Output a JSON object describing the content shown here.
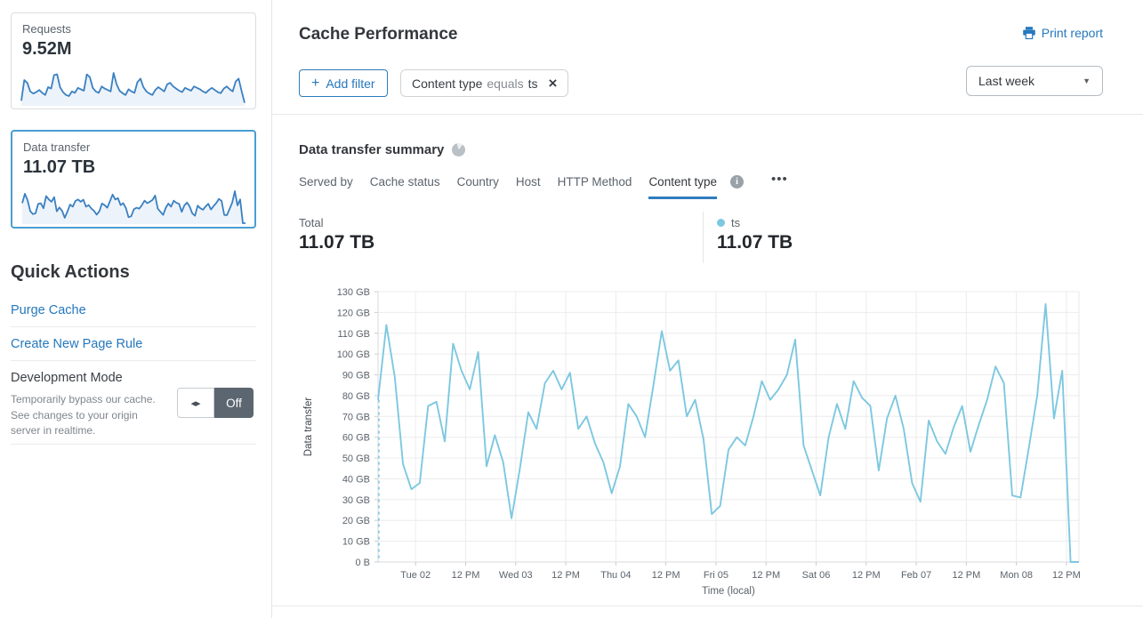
{
  "colors": {
    "link_blue": "#2578bd",
    "chart_line": "#7dc8e0",
    "spark_stroke": "#3a80c1",
    "spark_fill": "#edf3fa",
    "selected_card_border": "#4a9ed2",
    "tab_underline": "#2f7cbf"
  },
  "icons": {
    "plus": "+",
    "close": "×",
    "caret_down": "▼",
    "info": "i",
    "more": "•••",
    "dev_mode_arrows": "◂▸"
  },
  "sidebar": {
    "requests_card": {
      "label": "Requests",
      "value": "9.52M",
      "sparkline": [
        12,
        70,
        62,
        38,
        32,
        36,
        42,
        34,
        28,
        50,
        46,
        84,
        86,
        50,
        36,
        28,
        25,
        38,
        34,
        48,
        44,
        40,
        86,
        78,
        48,
        38,
        34,
        52,
        46,
        42,
        38,
        90,
        58,
        40,
        33,
        28,
        44,
        38,
        34,
        64,
        74,
        50,
        38,
        32,
        28,
        42,
        50,
        44,
        38,
        58,
        62,
        52,
        46,
        40,
        36,
        48,
        44,
        40,
        52,
        48,
        44,
        38,
        34,
        42,
        48,
        42,
        36,
        33,
        46,
        52,
        44,
        38,
        66,
        74,
        38,
        6
      ]
    },
    "data_transfer_card": {
      "label": "Data transfer",
      "value": "11.07 TB"
    },
    "quick_actions": {
      "title": "Quick Actions",
      "links": [
        {
          "label": "Purge Cache"
        },
        {
          "label": "Create New Page Rule"
        }
      ],
      "development_mode": {
        "title": "Development Mode",
        "description": "Temporarily bypass our cache. See changes to your origin server in realtime.",
        "state": "Off"
      }
    }
  },
  "header": {
    "title": "Cache Performance",
    "print_report_label": "Print report",
    "add_filter_label": "Add filter",
    "filter_chip": {
      "field": "Content type",
      "operator": "equals",
      "value": "ts"
    },
    "time_range": "Last week"
  },
  "summary": {
    "title": "Data transfer summary",
    "tabs": [
      {
        "label": "Served by"
      },
      {
        "label": "Cache status"
      },
      {
        "label": "Country"
      },
      {
        "label": "Host"
      },
      {
        "label": "HTTP Method"
      },
      {
        "label": "Content type",
        "active": true
      }
    ],
    "total": {
      "label": "Total",
      "value": "11.07 TB"
    },
    "legend": {
      "name": "ts",
      "value": "11.07 TB",
      "color": "#7dc8e0"
    }
  },
  "chart_data": {
    "type": "line",
    "series_name": "ts",
    "unit": "GB",
    "ylabel": "Data transfer",
    "xlabel": "Time (local)",
    "ylim": [
      0,
      130
    ],
    "grid": true,
    "dashed_start_line": true,
    "line_color": "#7dc8e0",
    "yticks": [
      "0 B",
      "10 GB",
      "20 GB",
      "30 GB",
      "40 GB",
      "50 GB",
      "60 GB",
      "70 GB",
      "80 GB",
      "90 GB",
      "100 GB",
      "110 GB",
      "120 GB",
      "130 GB"
    ],
    "xticks": [
      "Tue 02",
      "12 PM",
      "Wed 03",
      "12 PM",
      "Thu 04",
      "12 PM",
      "Fri 05",
      "12 PM",
      "Sat 06",
      "12 PM",
      "Feb 07",
      "12 PM",
      "Mon 08",
      "12 PM"
    ],
    "xtick_first_index": 4.5,
    "xtick_step_points": 6,
    "interval_hours": 2,
    "values": [
      78,
      114,
      89,
      47,
      35,
      38,
      75,
      77,
      58,
      105,
      92,
      83,
      101,
      46,
      61,
      48,
      21,
      45,
      72,
      64,
      86,
      92,
      83,
      91,
      64,
      70,
      57,
      48,
      33,
      46,
      76,
      70,
      60,
      85,
      111,
      92,
      97,
      70,
      78,
      59,
      23,
      27,
      54,
      60,
      56,
      70,
      87,
      78,
      83,
      90,
      107,
      56,
      44,
      32,
      60,
      76,
      64,
      87,
      79,
      75,
      44,
      69,
      80,
      64,
      38,
      29,
      68,
      58,
      52,
      65,
      75,
      53,
      66,
      78,
      94,
      86,
      32,
      31,
      55,
      80,
      124,
      69,
      92,
      0,
      0
    ]
  }
}
